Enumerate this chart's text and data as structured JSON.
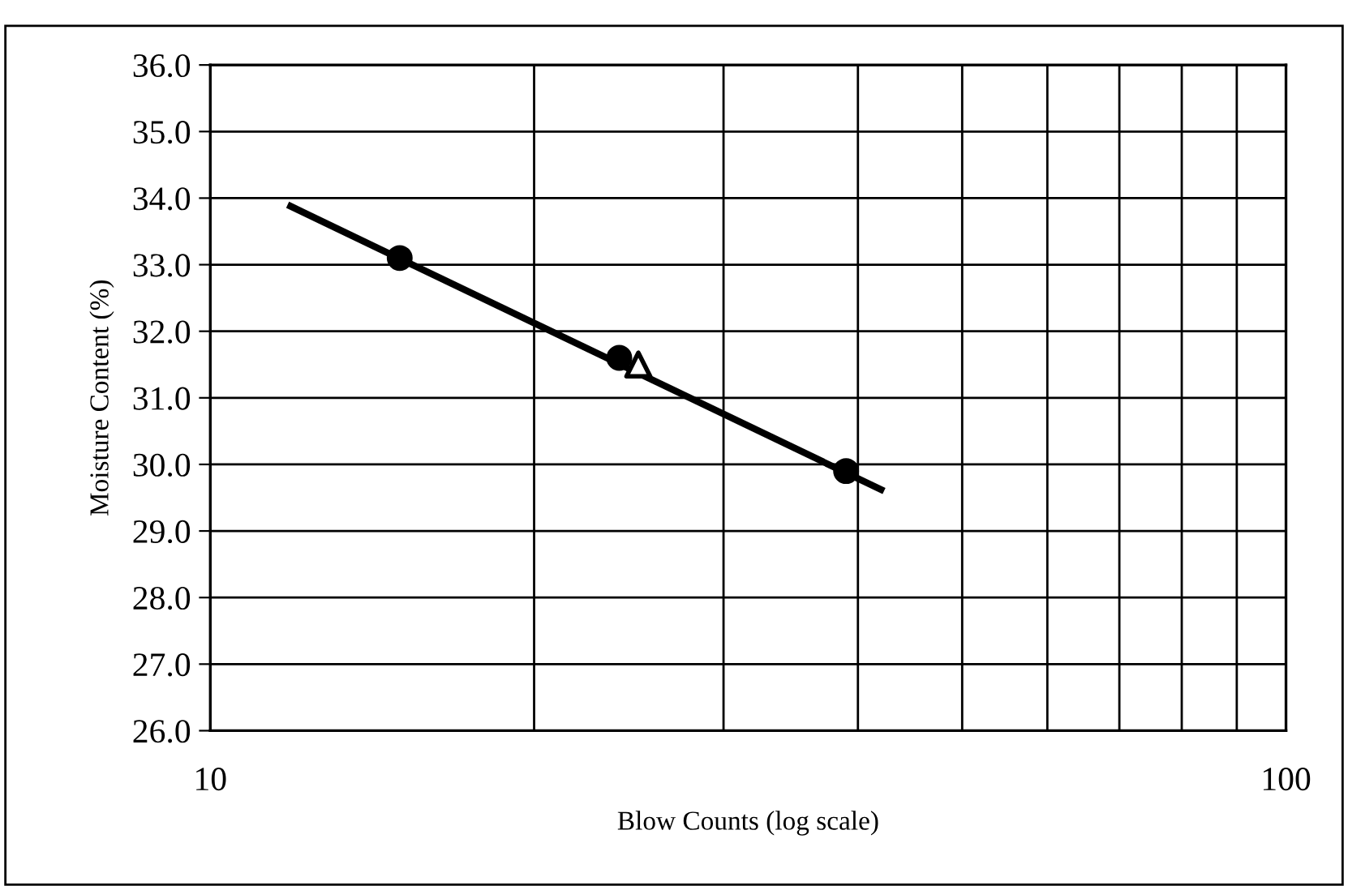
{
  "chart_data": {
    "type": "scatter",
    "xlabel": "Blow Counts (log scale)",
    "ylabel": "Moisture Content (%)",
    "log": "x",
    "grid": true,
    "legend": false,
    "xlim": [
      10,
      100
    ],
    "xticks": [
      10,
      {
        "value": 20,
        "label": null
      },
      {
        "value": 30,
        "label": null
      },
      {
        "value": 40,
        "label": null
      },
      {
        "value": 50,
        "label": null
      },
      {
        "value": 60,
        "label": null
      },
      {
        "value": 70,
        "label": null
      },
      {
        "value": 80,
        "label": null
      },
      {
        "value": 90,
        "label": null
      },
      100
    ],
    "ylim": [
      26,
      36
    ],
    "yticks": [
      {
        "value": 26,
        "label": "26.0"
      },
      {
        "value": 27,
        "label": "27.0"
      },
      {
        "value": 28,
        "label": "28.0"
      },
      {
        "value": 29,
        "label": "29.0"
      },
      {
        "value": 30,
        "label": "30.0"
      },
      {
        "value": 31,
        "label": "31.0"
      },
      {
        "value": 32,
        "label": "32.0"
      },
      {
        "value": 33,
        "label": "33.0"
      },
      {
        "value": 34,
        "label": "34.0"
      },
      {
        "value": 35,
        "label": "35.0"
      },
      {
        "value": 36,
        "label": "36.0"
      }
    ],
    "series": [
      {
        "type": "line",
        "color": "#000000",
        "marker": "none",
        "x": [
          11.8,
          42.3
        ],
        "values": [
          33.9,
          29.6
        ]
      },
      {
        "color": "#000000",
        "marker": "circle",
        "x": [
          15,
          24,
          39
        ],
        "values": [
          33.1,
          31.6,
          29.9
        ]
      },
      {
        "color": "#000000",
        "marker": "triangle",
        "x": [
          25
        ],
        "values": [
          31.5
        ]
      }
    ]
  }
}
